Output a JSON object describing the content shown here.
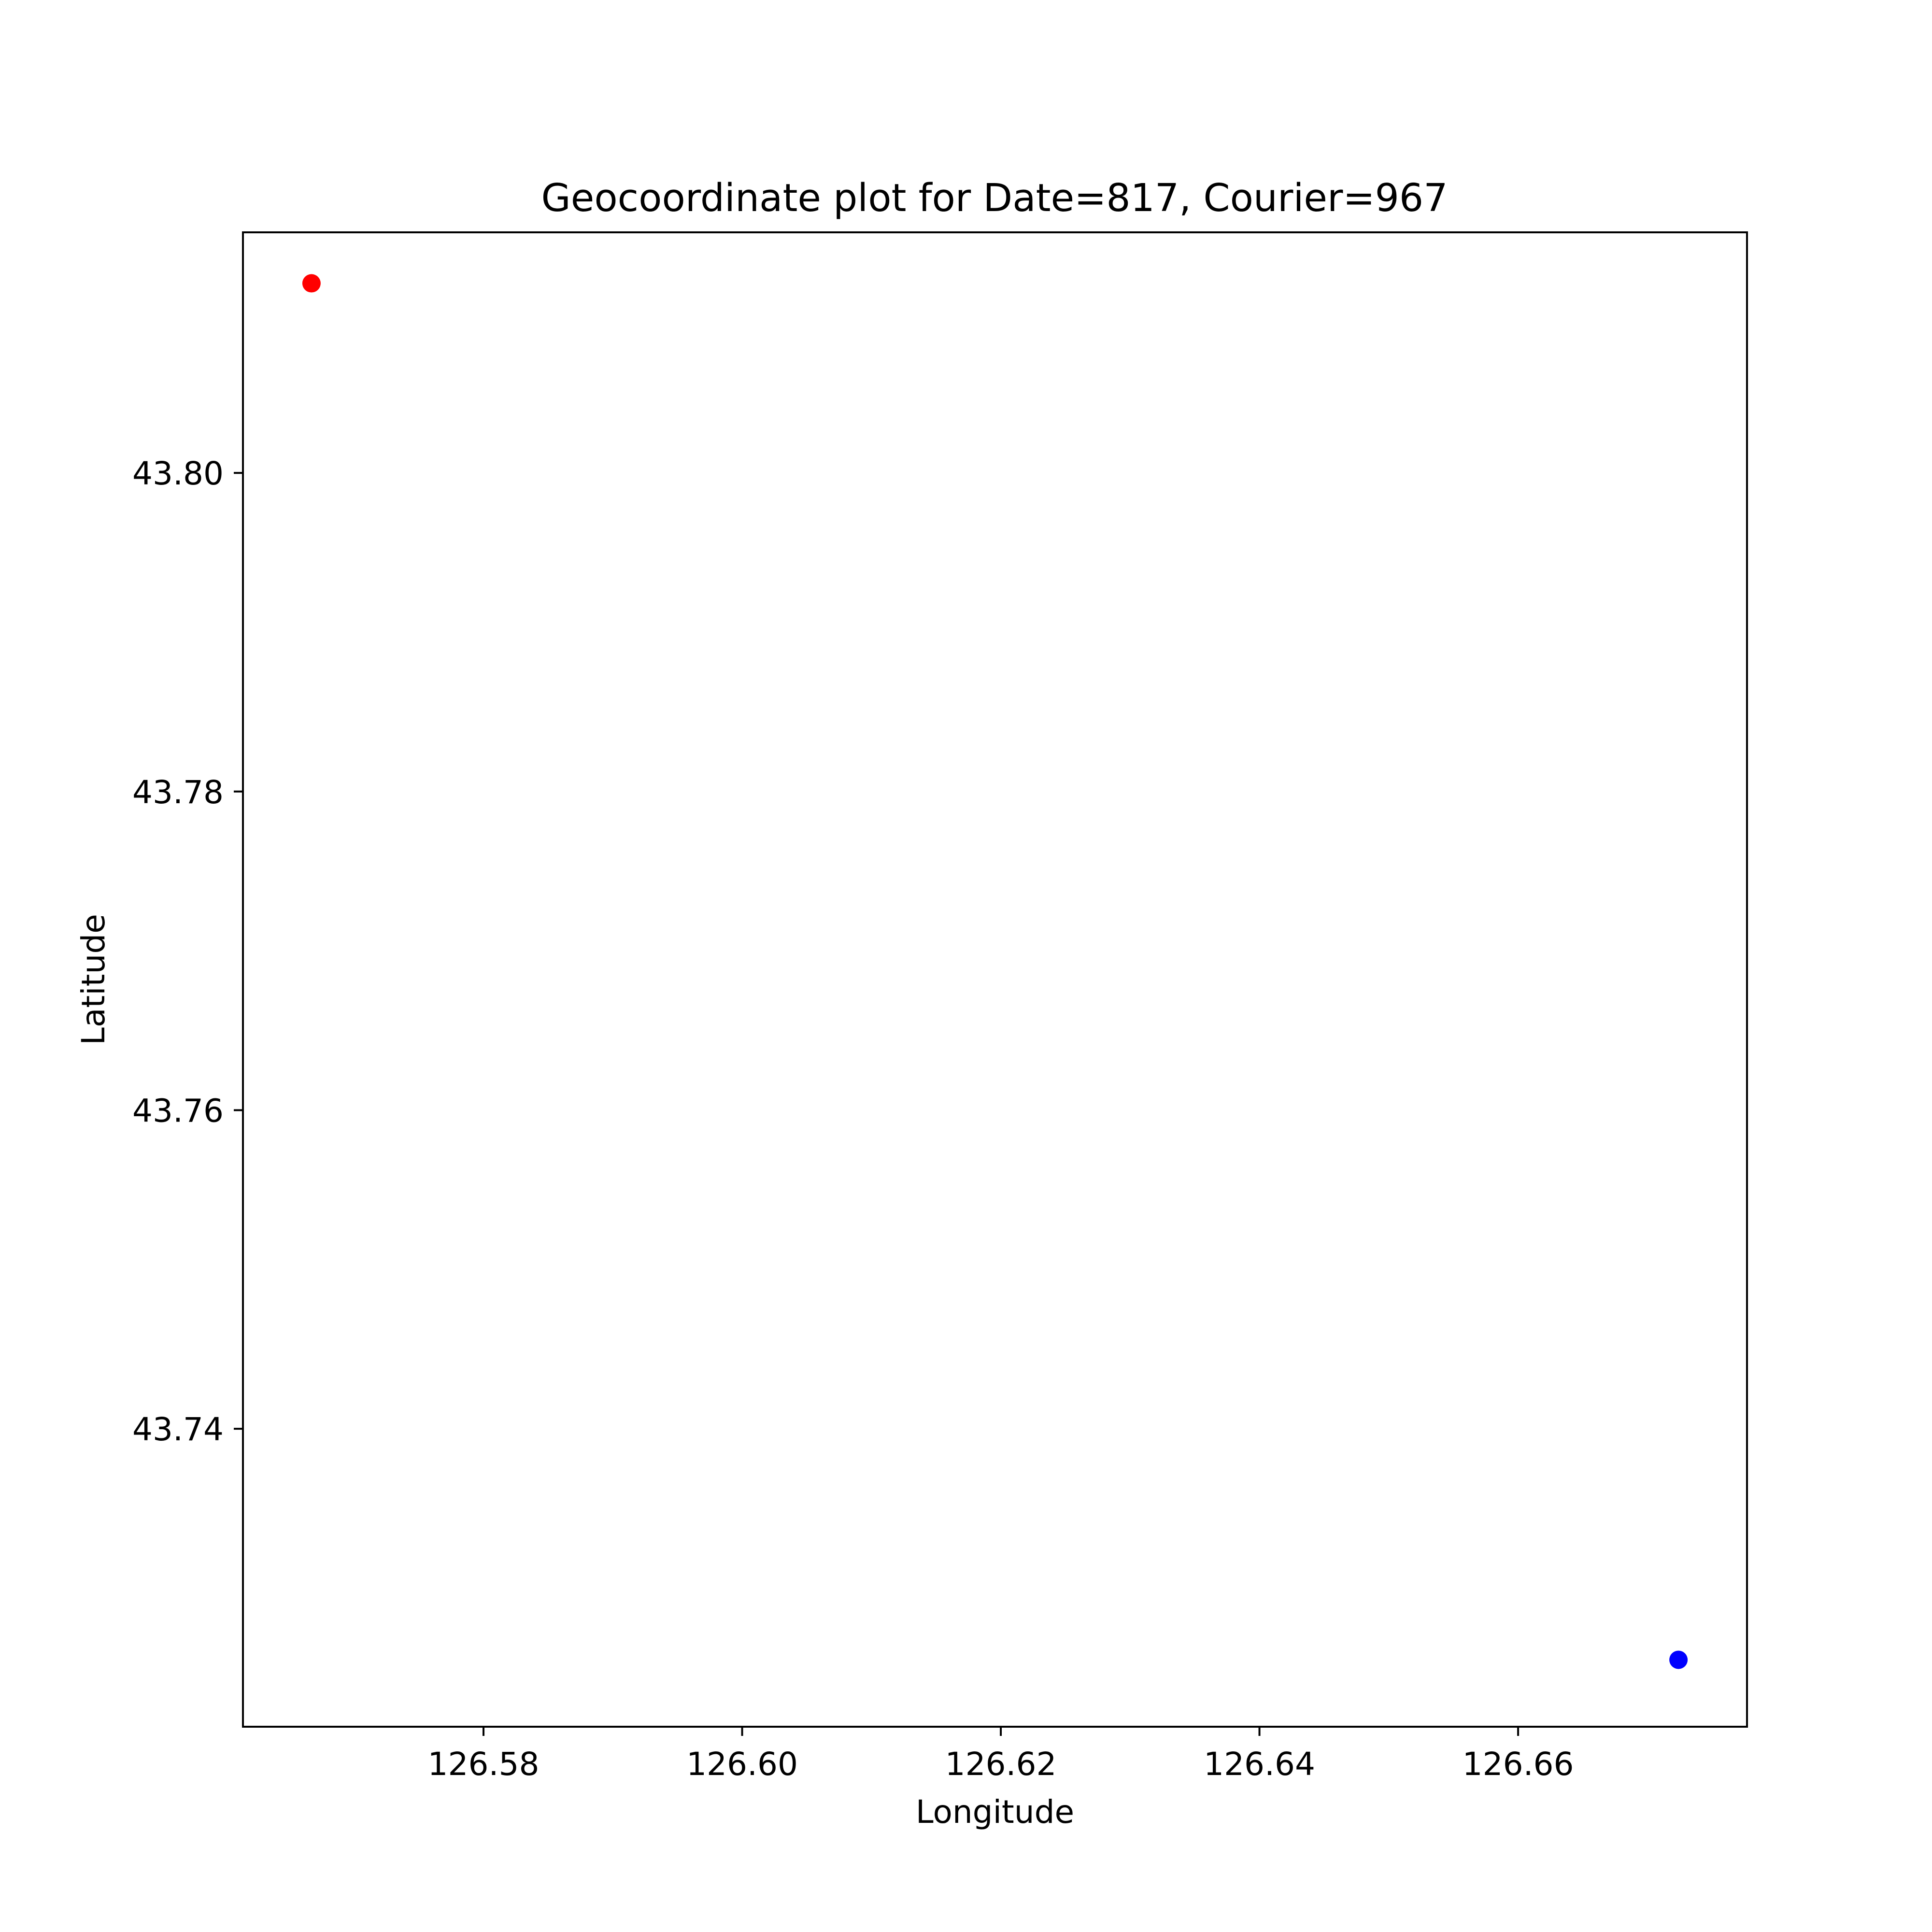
{
  "chart_data": {
    "type": "scatter",
    "title": "Geocoordinate plot for Date=817, Courier=967",
    "xlabel": "Longitude",
    "ylabel": "Latitude",
    "xlim": [
      126.5614,
      126.6777
    ],
    "ylim": [
      43.7213,
      43.8151
    ],
    "xticks": [
      126.58,
      126.6,
      126.62,
      126.64,
      126.66
    ],
    "xtick_labels": [
      "126.58",
      "126.60",
      "126.62",
      "126.64",
      "126.66"
    ],
    "yticks": [
      43.74,
      43.76,
      43.78,
      43.8
    ],
    "ytick_labels": [
      "43.74",
      "43.76",
      "43.78",
      "43.80"
    ],
    "grid": false,
    "points": [
      {
        "x": 126.5667,
        "y": 43.8119,
        "color": "#ff0000"
      },
      {
        "x": 126.6724,
        "y": 43.7255,
        "color": "#0000ff"
      }
    ]
  }
}
